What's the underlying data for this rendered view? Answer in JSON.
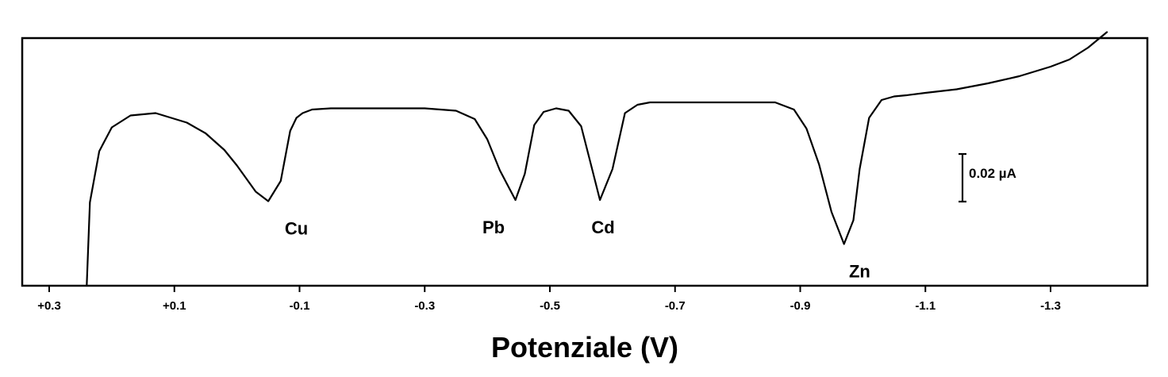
{
  "chart_data": {
    "type": "line",
    "title": "",
    "xlabel": "Potenziale (V)",
    "ylabel": "",
    "x_reversed": true,
    "xlim": [
      0.36,
      -1.45
    ],
    "x_ticks": [
      0.3,
      0.1,
      -0.1,
      -0.3,
      -0.5,
      -0.7,
      -0.9,
      -1.1,
      -1.3
    ],
    "x_tick_labels": [
      "+0.3",
      "+0.1",
      "-0.1",
      "-0.3",
      "-0.5",
      "-0.7",
      "-0.9",
      "-1.1",
      "-1.3"
    ],
    "y_unit": "µA",
    "ylim": [
      0,
      0.21
    ],
    "grid": false,
    "scale_bar": {
      "value": 0.02,
      "label": "0.02 µA"
    },
    "series": [
      {
        "x": [
          0.24,
          0.235,
          0.22,
          0.2,
          0.17,
          0.13,
          0.08,
          0.05,
          0.02,
          0.0,
          -0.03,
          -0.05,
          -0.07,
          -0.085,
          -0.095,
          -0.105,
          -0.12,
          -0.15,
          -0.2,
          -0.3,
          -0.35,
          -0.38,
          -0.4,
          -0.42,
          -0.445,
          -0.46,
          -0.475,
          -0.49,
          -0.51,
          -0.53,
          -0.55,
          -0.565,
          -0.58,
          -0.6,
          -0.62,
          -0.64,
          -0.66,
          -0.7,
          -0.8,
          -0.86,
          -0.89,
          -0.91,
          -0.93,
          -0.95,
          -0.97,
          -0.985,
          -0.995,
          -1.01,
          -1.03,
          -1.05,
          -1.07,
          -1.1,
          -1.15,
          -1.2,
          -1.25,
          -1.3,
          -1.33,
          -1.36,
          -1.39
        ],
        "y": [
          0.0,
          0.07,
          0.113,
          0.133,
          0.143,
          0.145,
          0.137,
          0.128,
          0.114,
          0.101,
          0.079,
          0.071,
          0.088,
          0.13,
          0.141,
          0.145,
          0.148,
          0.149,
          0.149,
          0.149,
          0.147,
          0.14,
          0.123,
          0.097,
          0.072,
          0.094,
          0.135,
          0.146,
          0.149,
          0.147,
          0.134,
          0.103,
          0.072,
          0.098,
          0.145,
          0.152,
          0.154,
          0.154,
          0.154,
          0.154,
          0.148,
          0.132,
          0.102,
          0.062,
          0.035,
          0.055,
          0.098,
          0.141,
          0.156,
          0.159,
          0.16,
          0.162,
          0.165,
          0.17,
          0.176,
          0.184,
          0.19,
          0.2,
          0.213
        ]
      }
    ],
    "annotations": [
      {
        "text": "Cu",
        "x": -0.095,
        "y": 0.071
      },
      {
        "text": "Pb",
        "x": -0.41,
        "y": 0.072
      },
      {
        "text": "Cd",
        "x": -0.585,
        "y": 0.072
      },
      {
        "text": "Zn",
        "x": -0.995,
        "y": 0.035
      }
    ]
  }
}
